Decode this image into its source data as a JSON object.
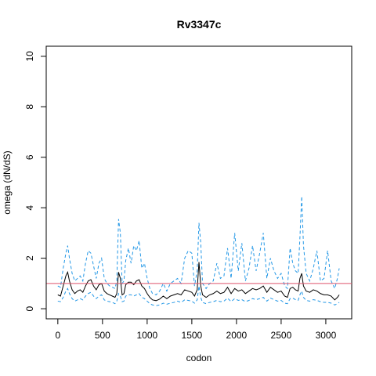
{
  "chart_data": {
    "type": "line",
    "title": "Rv3347c",
    "xlabel": "codon",
    "ylabel": "omega (dN/dS)",
    "xlim": [
      -130,
      3290
    ],
    "ylim": [
      -0.4,
      10.4
    ],
    "x_ticks": [
      0,
      500,
      1000,
      1500,
      2000,
      2500,
      3000
    ],
    "y_ticks": [
      0,
      2,
      4,
      6,
      8,
      10
    ],
    "reference_line": {
      "y": 1,
      "color": "#df536b"
    },
    "grid": false,
    "legend": "none",
    "series": [
      {
        "style": "solid",
        "color": "#000000",
        "points": [
          [
            0,
            0.55
          ],
          [
            30,
            0.5
          ],
          [
            60,
            0.9
          ],
          [
            90,
            1.3
          ],
          [
            110,
            1.45
          ],
          [
            130,
            1.1
          ],
          [
            160,
            0.75
          ],
          [
            190,
            0.6
          ],
          [
            220,
            0.7
          ],
          [
            250,
            0.75
          ],
          [
            280,
            0.65
          ],
          [
            310,
            0.9
          ],
          [
            340,
            1.1
          ],
          [
            370,
            1.15
          ],
          [
            400,
            0.9
          ],
          [
            430,
            0.75
          ],
          [
            460,
            0.95
          ],
          [
            490,
            1.0
          ],
          [
            520,
            0.7
          ],
          [
            550,
            0.6
          ],
          [
            580,
            0.55
          ],
          [
            610,
            0.5
          ],
          [
            640,
            0.45
          ],
          [
            660,
            0.6
          ],
          [
            680,
            1.45
          ],
          [
            700,
            1.2
          ],
          [
            720,
            0.55
          ],
          [
            740,
            0.6
          ],
          [
            760,
            0.95
          ],
          [
            790,
            1.05
          ],
          [
            820,
            1.05
          ],
          [
            850,
            0.95
          ],
          [
            880,
            1.1
          ],
          [
            910,
            1.15
          ],
          [
            940,
            0.9
          ],
          [
            970,
            0.8
          ],
          [
            1000,
            0.6
          ],
          [
            1030,
            0.45
          ],
          [
            1060,
            0.35
          ],
          [
            1100,
            0.32
          ],
          [
            1140,
            0.38
          ],
          [
            1180,
            0.5
          ],
          [
            1220,
            0.4
          ],
          [
            1260,
            0.5
          ],
          [
            1300,
            0.55
          ],
          [
            1340,
            0.6
          ],
          [
            1380,
            0.55
          ],
          [
            1420,
            0.75
          ],
          [
            1460,
            0.7
          ],
          [
            1500,
            0.65
          ],
          [
            1530,
            0.5
          ],
          [
            1560,
            0.75
          ],
          [
            1580,
            1.85
          ],
          [
            1600,
            0.9
          ],
          [
            1620,
            0.55
          ],
          [
            1660,
            0.45
          ],
          [
            1700,
            0.55
          ],
          [
            1740,
            0.6
          ],
          [
            1780,
            0.7
          ],
          [
            1820,
            0.6
          ],
          [
            1860,
            0.65
          ],
          [
            1900,
            0.85
          ],
          [
            1940,
            0.6
          ],
          [
            1980,
            0.8
          ],
          [
            2020,
            0.7
          ],
          [
            2060,
            0.75
          ],
          [
            2100,
            0.6
          ],
          [
            2140,
            0.7
          ],
          [
            2180,
            0.8
          ],
          [
            2220,
            0.75
          ],
          [
            2260,
            0.8
          ],
          [
            2300,
            0.9
          ],
          [
            2340,
            0.65
          ],
          [
            2380,
            0.85
          ],
          [
            2420,
            0.75
          ],
          [
            2460,
            0.65
          ],
          [
            2500,
            0.7
          ],
          [
            2540,
            0.5
          ],
          [
            2570,
            0.45
          ],
          [
            2600,
            0.8
          ],
          [
            2630,
            0.85
          ],
          [
            2660,
            0.75
          ],
          [
            2690,
            0.7
          ],
          [
            2710,
            1.2
          ],
          [
            2730,
            1.4
          ],
          [
            2750,
            0.9
          ],
          [
            2780,
            0.7
          ],
          [
            2820,
            0.65
          ],
          [
            2860,
            0.75
          ],
          [
            2900,
            0.7
          ],
          [
            2940,
            0.6
          ],
          [
            2980,
            0.55
          ],
          [
            3020,
            0.55
          ],
          [
            3060,
            0.5
          ],
          [
            3100,
            0.35
          ],
          [
            3130,
            0.45
          ],
          [
            3150,
            0.55
          ]
        ]
      },
      {
        "style": "dashed",
        "color": "#2297e6",
        "points": [
          [
            0,
            0.9
          ],
          [
            30,
            0.85
          ],
          [
            60,
            1.6
          ],
          [
            90,
            2.2
          ],
          [
            110,
            2.5
          ],
          [
            130,
            2.0
          ],
          [
            160,
            1.4
          ],
          [
            190,
            1.1
          ],
          [
            220,
            1.2
          ],
          [
            250,
            1.3
          ],
          [
            280,
            1.1
          ],
          [
            310,
            1.8
          ],
          [
            340,
            2.3
          ],
          [
            370,
            2.2
          ],
          [
            400,
            1.7
          ],
          [
            430,
            1.2
          ],
          [
            460,
            1.8
          ],
          [
            490,
            2.0
          ],
          [
            520,
            1.2
          ],
          [
            550,
            1.0
          ],
          [
            580,
            0.9
          ],
          [
            610,
            0.85
          ],
          [
            640,
            0.8
          ],
          [
            660,
            1.1
          ],
          [
            680,
            3.55
          ],
          [
            700,
            3.0
          ],
          [
            720,
            1.0
          ],
          [
            740,
            1.1
          ],
          [
            760,
            1.9
          ],
          [
            790,
            2.4
          ],
          [
            820,
            1.8
          ],
          [
            850,
            2.5
          ],
          [
            880,
            2.3
          ],
          [
            910,
            2.7
          ],
          [
            940,
            1.6
          ],
          [
            970,
            1.8
          ],
          [
            1000,
            1.2
          ],
          [
            1030,
            0.8
          ],
          [
            1060,
            0.6
          ],
          [
            1100,
            0.55
          ],
          [
            1140,
            0.7
          ],
          [
            1180,
            1.0
          ],
          [
            1220,
            0.7
          ],
          [
            1260,
            1.0
          ],
          [
            1300,
            1.1
          ],
          [
            1340,
            1.2
          ],
          [
            1380,
            1.0
          ],
          [
            1420,
            2.0
          ],
          [
            1460,
            2.3
          ],
          [
            1500,
            2.2
          ],
          [
            1530,
            0.9
          ],
          [
            1560,
            1.5
          ],
          [
            1580,
            3.4
          ],
          [
            1600,
            2.6
          ],
          [
            1620,
            1.0
          ],
          [
            1660,
            0.8
          ],
          [
            1700,
            1.0
          ],
          [
            1740,
            1.1
          ],
          [
            1780,
            1.8
          ],
          [
            1820,
            1.2
          ],
          [
            1860,
            1.3
          ],
          [
            1900,
            2.4
          ],
          [
            1940,
            1.2
          ],
          [
            1980,
            3.0
          ],
          [
            2020,
            1.5
          ],
          [
            2060,
            2.6
          ],
          [
            2100,
            1.1
          ],
          [
            2140,
            1.6
          ],
          [
            2180,
            2.5
          ],
          [
            2220,
            1.5
          ],
          [
            2260,
            2.2
          ],
          [
            2300,
            3.0
          ],
          [
            2340,
            1.2
          ],
          [
            2380,
            2.0
          ],
          [
            2420,
            1.5
          ],
          [
            2460,
            1.2
          ],
          [
            2500,
            1.4
          ],
          [
            2540,
            0.9
          ],
          [
            2570,
            0.8
          ],
          [
            2600,
            2.4
          ],
          [
            2630,
            1.8
          ],
          [
            2660,
            1.5
          ],
          [
            2690,
            1.4
          ],
          [
            2710,
            2.8
          ],
          [
            2730,
            4.45
          ],
          [
            2750,
            2.5
          ],
          [
            2780,
            1.4
          ],
          [
            2820,
            1.1
          ],
          [
            2860,
            1.6
          ],
          [
            2900,
            2.3
          ],
          [
            2940,
            1.1
          ],
          [
            2980,
            1.2
          ],
          [
            3020,
            2.3
          ],
          [
            3060,
            1.1
          ],
          [
            3100,
            0.8
          ],
          [
            3130,
            1.2
          ],
          [
            3150,
            1.6
          ]
        ]
      },
      {
        "style": "dashed",
        "color": "#2297e6",
        "points": [
          [
            0,
            0.3
          ],
          [
            30,
            0.28
          ],
          [
            60,
            0.45
          ],
          [
            90,
            0.7
          ],
          [
            110,
            0.8
          ],
          [
            130,
            0.6
          ],
          [
            160,
            0.4
          ],
          [
            190,
            0.3
          ],
          [
            220,
            0.35
          ],
          [
            250,
            0.4
          ],
          [
            280,
            0.35
          ],
          [
            310,
            0.5
          ],
          [
            340,
            0.6
          ],
          [
            370,
            0.65
          ],
          [
            400,
            0.5
          ],
          [
            430,
            0.4
          ],
          [
            460,
            0.5
          ],
          [
            490,
            0.55
          ],
          [
            520,
            0.35
          ],
          [
            550,
            0.3
          ],
          [
            580,
            0.28
          ],
          [
            610,
            0.25
          ],
          [
            640,
            0.2
          ],
          [
            660,
            0.3
          ],
          [
            680,
            0.6
          ],
          [
            700,
            0.5
          ],
          [
            720,
            0.28
          ],
          [
            740,
            0.3
          ],
          [
            760,
            0.5
          ],
          [
            790,
            0.55
          ],
          [
            820,
            0.55
          ],
          [
            850,
            0.5
          ],
          [
            880,
            0.55
          ],
          [
            910,
            0.6
          ],
          [
            940,
            0.45
          ],
          [
            970,
            0.4
          ],
          [
            1000,
            0.3
          ],
          [
            1030,
            0.2
          ],
          [
            1060,
            0.15
          ],
          [
            1100,
            0.12
          ],
          [
            1140,
            0.15
          ],
          [
            1180,
            0.22
          ],
          [
            1220,
            0.18
          ],
          [
            1260,
            0.22
          ],
          [
            1300,
            0.25
          ],
          [
            1340,
            0.3
          ],
          [
            1380,
            0.25
          ],
          [
            1420,
            0.35
          ],
          [
            1460,
            0.33
          ],
          [
            1500,
            0.3
          ],
          [
            1530,
            0.22
          ],
          [
            1560,
            0.35
          ],
          [
            1580,
            0.9
          ],
          [
            1600,
            0.45
          ],
          [
            1620,
            0.25
          ],
          [
            1660,
            0.2
          ],
          [
            1700,
            0.25
          ],
          [
            1740,
            0.28
          ],
          [
            1780,
            0.33
          ],
          [
            1820,
            0.28
          ],
          [
            1860,
            0.3
          ],
          [
            1900,
            0.42
          ],
          [
            1940,
            0.28
          ],
          [
            1980,
            0.4
          ],
          [
            2020,
            0.33
          ],
          [
            2060,
            0.36
          ],
          [
            2100,
            0.28
          ],
          [
            2140,
            0.33
          ],
          [
            2180,
            0.4
          ],
          [
            2220,
            0.36
          ],
          [
            2260,
            0.4
          ],
          [
            2300,
            0.45
          ],
          [
            2340,
            0.3
          ],
          [
            2380,
            0.42
          ],
          [
            2420,
            0.36
          ],
          [
            2460,
            0.3
          ],
          [
            2500,
            0.33
          ],
          [
            2540,
            0.22
          ],
          [
            2570,
            0.2
          ],
          [
            2600,
            0.4
          ],
          [
            2630,
            0.42
          ],
          [
            2660,
            0.36
          ],
          [
            2690,
            0.33
          ],
          [
            2710,
            0.55
          ],
          [
            2730,
            0.7
          ],
          [
            2750,
            0.45
          ],
          [
            2780,
            0.33
          ],
          [
            2820,
            0.3
          ],
          [
            2860,
            0.36
          ],
          [
            2900,
            0.33
          ],
          [
            2940,
            0.28
          ],
          [
            2980,
            0.25
          ],
          [
            3020,
            0.25
          ],
          [
            3060,
            0.22
          ],
          [
            3100,
            0.15
          ],
          [
            3130,
            0.2
          ],
          [
            3150,
            0.25
          ]
        ]
      }
    ]
  }
}
